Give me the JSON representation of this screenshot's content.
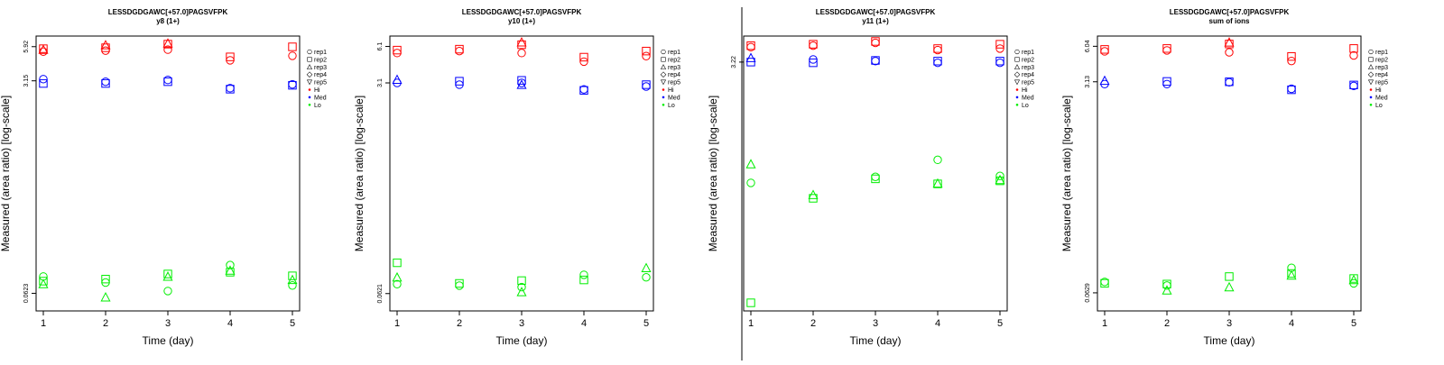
{
  "chart_data": [
    {
      "type": "scatter",
      "title": "LESSDGDGAWC[+57.0]PAGSVFPK",
      "subtitle": "y8 (1+)",
      "xlabel": "Time (day)",
      "ylabel": "Measured (area ratio) [log-scale]",
      "y_scale": "log",
      "x_ticks": [
        "1",
        "2",
        "3",
        "4",
        "5"
      ],
      "y_ticks": [
        "0.0623",
        "3.15",
        "5.92"
      ],
      "ylim": [
        0.045,
        7.2
      ],
      "legend": [
        "rep1",
        "rep2",
        "rep3",
        "rep4",
        "rep5",
        "Hi",
        "Med",
        "Lo"
      ],
      "legend_placement": "right",
      "grid": false,
      "series": [
        {
          "name": "Hi",
          "color": "#ff0000",
          "points": [
            {
              "x": 1,
              "y": 5.4,
              "rep": "rep1"
            },
            {
              "x": 1,
              "y": 5.7,
              "rep": "rep2"
            },
            {
              "x": 1,
              "y": 5.6,
              "rep": "rep3"
            },
            {
              "x": 2,
              "y": 5.5,
              "rep": "rep1"
            },
            {
              "x": 2,
              "y": 5.8,
              "rep": "rep2"
            },
            {
              "x": 2,
              "y": 6.1,
              "rep": "rep3"
            },
            {
              "x": 3,
              "y": 5.6,
              "rep": "rep1"
            },
            {
              "x": 3,
              "y": 6.2,
              "rep": "rep2"
            },
            {
              "x": 3,
              "y": 6.3,
              "rep": "rep3"
            },
            {
              "x": 4,
              "y": 4.6,
              "rep": "rep1"
            },
            {
              "x": 4,
              "y": 4.9,
              "rep": "rep2"
            },
            {
              "x": 5,
              "y": 5.0,
              "rep": "rep1"
            },
            {
              "x": 5,
              "y": 5.9,
              "rep": "rep2"
            }
          ]
        },
        {
          "name": "Med",
          "color": "#0000ff",
          "points": [
            {
              "x": 1,
              "y": 3.25,
              "rep": "rep1"
            },
            {
              "x": 1,
              "y": 3.0,
              "rep": "rep2"
            },
            {
              "x": 2,
              "y": 3.1,
              "rep": "rep1"
            },
            {
              "x": 2,
              "y": 3.0,
              "rep": "rep2"
            },
            {
              "x": 3,
              "y": 3.2,
              "rep": "rep1"
            },
            {
              "x": 3,
              "y": 3.1,
              "rep": "rep2"
            },
            {
              "x": 4,
              "y": 2.75,
              "rep": "rep1"
            },
            {
              "x": 4,
              "y": 2.7,
              "rep": "rep2"
            },
            {
              "x": 5,
              "y": 2.95,
              "rep": "rep1"
            },
            {
              "x": 5,
              "y": 2.9,
              "rep": "rep2"
            }
          ]
        },
        {
          "name": "Lo",
          "color": "#00ee00",
          "points": [
            {
              "x": 1,
              "y": 0.085,
              "rep": "rep1"
            },
            {
              "x": 1,
              "y": 0.078,
              "rep": "rep2"
            },
            {
              "x": 1,
              "y": 0.074,
              "rep": "rep3"
            },
            {
              "x": 2,
              "y": 0.076,
              "rep": "rep1"
            },
            {
              "x": 2,
              "y": 0.081,
              "rep": "rep2"
            },
            {
              "x": 2,
              "y": 0.058,
              "rep": "rep3"
            },
            {
              "x": 3,
              "y": 0.065,
              "rep": "rep1"
            },
            {
              "x": 3,
              "y": 0.089,
              "rep": "rep2"
            },
            {
              "x": 3,
              "y": 0.085,
              "rep": "rep3"
            },
            {
              "x": 4,
              "y": 0.105,
              "rep": "rep1"
            },
            {
              "x": 4,
              "y": 0.092,
              "rep": "rep2"
            },
            {
              "x": 4,
              "y": 0.095,
              "rep": "rep3"
            },
            {
              "x": 5,
              "y": 0.072,
              "rep": "rep1"
            },
            {
              "x": 5,
              "y": 0.086,
              "rep": "rep2"
            },
            {
              "x": 5,
              "y": 0.08,
              "rep": "rep3"
            }
          ]
        }
      ]
    },
    {
      "type": "scatter",
      "title": "LESSDGDGAWC[+57.0]PAGSVFPK",
      "subtitle": "y10 (1+)",
      "xlabel": "Time (day)",
      "ylabel": "Measured (area ratio) [log-scale]",
      "y_scale": "log",
      "x_ticks": [
        "1",
        "2",
        "3",
        "4",
        "5"
      ],
      "y_ticks": [
        "0.0621",
        "3.1",
        "6.1"
      ],
      "ylim": [
        0.045,
        7.4
      ],
      "legend": [
        "rep1",
        "rep2",
        "rep3",
        "rep4",
        "rep5",
        "Hi",
        "Med",
        "Lo"
      ],
      "legend_placement": "right",
      "grid": false,
      "series": [
        {
          "name": "Hi",
          "color": "#ff0000",
          "points": [
            {
              "x": 1,
              "y": 5.4,
              "rep": "rep1"
            },
            {
              "x": 1,
              "y": 5.7,
              "rep": "rep2"
            },
            {
              "x": 2,
              "y": 5.6,
              "rep": "rep1"
            },
            {
              "x": 2,
              "y": 5.8,
              "rep": "rep2"
            },
            {
              "x": 3,
              "y": 5.4,
              "rep": "rep1"
            },
            {
              "x": 3,
              "y": 6.3,
              "rep": "rep2"
            },
            {
              "x": 3,
              "y": 6.6,
              "rep": "rep3"
            },
            {
              "x": 4,
              "y": 4.6,
              "rep": "rep1"
            },
            {
              "x": 4,
              "y": 5.0,
              "rep": "rep2"
            },
            {
              "x": 5,
              "y": 5.1,
              "rep": "rep1"
            },
            {
              "x": 5,
              "y": 5.6,
              "rep": "rep2"
            }
          ]
        },
        {
          "name": "Med",
          "color": "#0000ff",
          "points": [
            {
              "x": 1,
              "y": 3.1,
              "rep": "rep1"
            },
            {
              "x": 1,
              "y": 3.3,
              "rep": "rep3"
            },
            {
              "x": 2,
              "y": 3.0,
              "rep": "rep1"
            },
            {
              "x": 2,
              "y": 3.2,
              "rep": "rep2"
            },
            {
              "x": 3,
              "y": 3.1,
              "rep": "rep1"
            },
            {
              "x": 3,
              "y": 3.25,
              "rep": "rep2"
            },
            {
              "x": 3,
              "y": 3.0,
              "rep": "rep3"
            },
            {
              "x": 4,
              "y": 2.75,
              "rep": "rep1"
            },
            {
              "x": 4,
              "y": 2.7,
              "rep": "rep2"
            },
            {
              "x": 5,
              "y": 2.9,
              "rep": "rep1"
            },
            {
              "x": 5,
              "y": 3.0,
              "rep": "rep2"
            }
          ]
        },
        {
          "name": "Lo",
          "color": "#00ee00",
          "points": [
            {
              "x": 1,
              "y": 0.074,
              "rep": "rep1"
            },
            {
              "x": 1,
              "y": 0.11,
              "rep": "rep2"
            },
            {
              "x": 1,
              "y": 0.084,
              "rep": "rep3"
            },
            {
              "x": 2,
              "y": 0.072,
              "rep": "rep1"
            },
            {
              "x": 2,
              "y": 0.075,
              "rep": "rep2"
            },
            {
              "x": 3,
              "y": 0.07,
              "rep": "rep1"
            },
            {
              "x": 3,
              "y": 0.079,
              "rep": "rep2"
            },
            {
              "x": 3,
              "y": 0.064,
              "rep": "rep3"
            },
            {
              "x": 4,
              "y": 0.088,
              "rep": "rep1"
            },
            {
              "x": 4,
              "y": 0.08,
              "rep": "rep2"
            },
            {
              "x": 5,
              "y": 0.084,
              "rep": "rep1"
            },
            {
              "x": 5,
              "y": 0.1,
              "rep": "rep3"
            }
          ]
        }
      ]
    },
    {
      "type": "scatter",
      "title": "LESSDGDGAWC[+57.0]PAGSVFPK",
      "subtitle": "y11 (1+)",
      "xlabel": "Time (day)",
      "ylabel": "Measured (area ratio) [log-scale]",
      "y_scale": "log",
      "x_ticks": [
        "1",
        "2",
        "3",
        "4",
        "5"
      ],
      "y_ticks": [
        "3.22"
      ],
      "ylim": [
        0.32,
        4.1
      ],
      "legend": [
        "rep1",
        "rep2",
        "rep3",
        "rep4",
        "rep5",
        "Hi",
        "Med",
        "Lo"
      ],
      "legend_placement": "right",
      "grid": false,
      "series": [
        {
          "name": "Hi",
          "color": "#ff0000",
          "points": [
            {
              "x": 1,
              "y": 3.7,
              "rep": "rep1"
            },
            {
              "x": 1,
              "y": 3.75,
              "rep": "rep2"
            },
            {
              "x": 2,
              "y": 3.75,
              "rep": "rep1"
            },
            {
              "x": 2,
              "y": 3.8,
              "rep": "rep2"
            },
            {
              "x": 3,
              "y": 3.85,
              "rep": "rep1"
            },
            {
              "x": 3,
              "y": 3.9,
              "rep": "rep2"
            },
            {
              "x": 4,
              "y": 3.6,
              "rep": "rep1"
            },
            {
              "x": 4,
              "y": 3.65,
              "rep": "rep2"
            },
            {
              "x": 5,
              "y": 3.65,
              "rep": "rep1"
            },
            {
              "x": 5,
              "y": 3.8,
              "rep": "rep2"
            }
          ]
        },
        {
          "name": "Med",
          "color": "#0000ff",
          "points": [
            {
              "x": 1,
              "y": 3.35,
              "rep": "rep3"
            },
            {
              "x": 1,
              "y": 3.22,
              "rep": "rep2"
            },
            {
              "x": 2,
              "y": 3.3,
              "rep": "rep1"
            },
            {
              "x": 2,
              "y": 3.2,
              "rep": "rep2"
            },
            {
              "x": 3,
              "y": 3.25,
              "rep": "rep1"
            },
            {
              "x": 3,
              "y": 3.27,
              "rep": "rep2"
            },
            {
              "x": 4,
              "y": 3.2,
              "rep": "rep1"
            },
            {
              "x": 4,
              "y": 3.25,
              "rep": "rep2"
            },
            {
              "x": 5,
              "y": 3.2,
              "rep": "rep1"
            },
            {
              "x": 5,
              "y": 3.25,
              "rep": "rep2"
            }
          ]
        },
        {
          "name": "Lo",
          "color": "#00ee00",
          "points": [
            {
              "x": 1,
              "y": 1.05,
              "rep": "rep1"
            },
            {
              "x": 1,
              "y": 0.345,
              "rep": "rep2"
            },
            {
              "x": 1,
              "y": 1.25,
              "rep": "rep3"
            },
            {
              "x": 2,
              "y": 0.91,
              "rep": "rep2"
            },
            {
              "x": 2,
              "y": 0.94,
              "rep": "rep3"
            },
            {
              "x": 3,
              "y": 1.11,
              "rep": "rep1"
            },
            {
              "x": 3,
              "y": 1.09,
              "rep": "rep2"
            },
            {
              "x": 4,
              "y": 1.3,
              "rep": "rep1"
            },
            {
              "x": 4,
              "y": 1.04,
              "rep": "rep2"
            },
            {
              "x": 4,
              "y": 1.045,
              "rep": "rep3"
            },
            {
              "x": 5,
              "y": 1.12,
              "rep": "rep1"
            },
            {
              "x": 5,
              "y": 1.07,
              "rep": "rep2"
            },
            {
              "x": 5,
              "y": 1.08,
              "rep": "rep3"
            }
          ]
        }
      ]
    },
    {
      "type": "scatter",
      "title": "LESSDGDGAWC[+57.0]PAGSVFPK",
      "subtitle": "sum of ions",
      "xlabel": "Time (day)",
      "ylabel": "Measured (area ratio) [log-scale]",
      "y_scale": "log",
      "x_ticks": [
        "1",
        "2",
        "3",
        "4",
        "5"
      ],
      "y_ticks": [
        "0.0629",
        "3.13",
        "6.04"
      ],
      "ylim": [
        0.045,
        7.3
      ],
      "legend": [
        "rep1",
        "rep2",
        "rep3",
        "rep4",
        "rep5",
        "Hi",
        "Med",
        "Lo"
      ],
      "legend_placement": "right",
      "grid": false,
      "series": [
        {
          "name": "Hi",
          "color": "#ff0000",
          "points": [
            {
              "x": 1,
              "y": 5.5,
              "rep": "rep1"
            },
            {
              "x": 1,
              "y": 5.7,
              "rep": "rep2"
            },
            {
              "x": 2,
              "y": 5.6,
              "rep": "rep1"
            },
            {
              "x": 2,
              "y": 5.8,
              "rep": "rep2"
            },
            {
              "x": 3,
              "y": 5.4,
              "rep": "rep1"
            },
            {
              "x": 3,
              "y": 6.3,
              "rep": "rep2"
            },
            {
              "x": 3,
              "y": 6.5,
              "rep": "rep3"
            },
            {
              "x": 4,
              "y": 4.6,
              "rep": "rep1"
            },
            {
              "x": 4,
              "y": 5.0,
              "rep": "rep2"
            },
            {
              "x": 5,
              "y": 5.1,
              "rep": "rep1"
            },
            {
              "x": 5,
              "y": 5.8,
              "rep": "rep2"
            }
          ]
        },
        {
          "name": "Med",
          "color": "#0000ff",
          "points": [
            {
              "x": 1,
              "y": 3.0,
              "rep": "rep1"
            },
            {
              "x": 1,
              "y": 3.2,
              "rep": "rep3"
            },
            {
              "x": 2,
              "y": 3.0,
              "rep": "rep1"
            },
            {
              "x": 2,
              "y": 3.15,
              "rep": "rep2"
            },
            {
              "x": 3,
              "y": 3.1,
              "rep": "rep1"
            },
            {
              "x": 3,
              "y": 3.13,
              "rep": "rep2"
            },
            {
              "x": 4,
              "y": 2.75,
              "rep": "rep1"
            },
            {
              "x": 4,
              "y": 2.7,
              "rep": "rep2"
            },
            {
              "x": 5,
              "y": 2.9,
              "rep": "rep1"
            },
            {
              "x": 5,
              "y": 2.95,
              "rep": "rep2"
            }
          ]
        },
        {
          "name": "Lo",
          "color": "#00ee00",
          "points": [
            {
              "x": 1,
              "y": 0.077,
              "rep": "rep1"
            },
            {
              "x": 1,
              "y": 0.075,
              "rep": "rep2"
            },
            {
              "x": 2,
              "y": 0.072,
              "rep": "rep1"
            },
            {
              "x": 2,
              "y": 0.074,
              "rep": "rep2"
            },
            {
              "x": 2,
              "y": 0.066,
              "rep": "rep3"
            },
            {
              "x": 3,
              "y": 0.085,
              "rep": "rep2"
            },
            {
              "x": 3,
              "y": 0.07,
              "rep": "rep3"
            },
            {
              "x": 4,
              "y": 0.1,
              "rep": "rep1"
            },
            {
              "x": 4,
              "y": 0.09,
              "rep": "rep2"
            },
            {
              "x": 4,
              "y": 0.087,
              "rep": "rep3"
            },
            {
              "x": 5,
              "y": 0.075,
              "rep": "rep1"
            },
            {
              "x": 5,
              "y": 0.082,
              "rep": "rep2"
            },
            {
              "x": 5,
              "y": 0.08,
              "rep": "rep3"
            }
          ]
        }
      ]
    }
  ]
}
